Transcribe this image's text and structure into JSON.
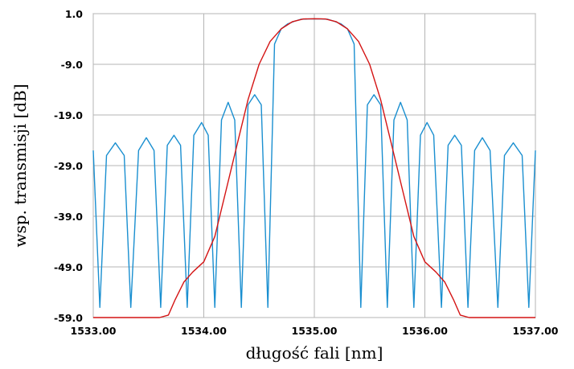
{
  "chart_data": {
    "type": "line",
    "title": "",
    "xlabel": "długość fali [nm]",
    "ylabel": "wsp. transmisji [dB]",
    "xlim": [
      1533.0,
      1537.0
    ],
    "ylim": [
      -59.0,
      1.0
    ],
    "x_ticks": [
      1533.0,
      1534.0,
      1535.0,
      1536.0,
      1537.0
    ],
    "x_tick_labels": [
      "1533.00",
      "1534.00",
      "1535.00",
      "1536.00",
      "1537.00"
    ],
    "y_ticks": [
      1.0,
      -9.0,
      -19.0,
      -29.0,
      -39.0,
      -49.0,
      -59.0
    ],
    "y_tick_labels": [
      "1.0",
      "-9.0",
      "-19.0",
      "-29.0",
      "-39.0",
      "-49.0",
      "-59.0"
    ],
    "grid": true,
    "legend": "none",
    "series": [
      {
        "color": "#1a8fd0",
        "x": [
          1533.0,
          1533.06,
          1533.12,
          1533.2,
          1533.28,
          1533.34,
          1533.41,
          1533.48,
          1533.55,
          1533.61,
          1533.67,
          1533.73,
          1533.79,
          1533.85,
          1533.91,
          1533.98,
          1534.04,
          1534.1,
          1534.16,
          1534.22,
          1534.28,
          1534.34,
          1534.4,
          1534.46,
          1534.52,
          1534.58,
          1534.64,
          1534.7,
          1534.76,
          1534.82,
          1534.88,
          1534.94,
          1535.0,
          1535.06,
          1535.12,
          1535.18,
          1535.24,
          1535.3,
          1535.36,
          1535.42,
          1535.48,
          1535.54,
          1535.6,
          1535.66,
          1535.72,
          1535.78,
          1535.84,
          1535.9,
          1535.96,
          1536.02,
          1536.08,
          1536.15,
          1536.21,
          1536.27,
          1536.33,
          1536.39,
          1536.45,
          1536.52,
          1536.59,
          1536.66,
          1536.72,
          1536.8,
          1536.88,
          1536.94,
          1537.0
        ],
        "values": [
          -26.0,
          -57.0,
          -27.0,
          -24.5,
          -27.0,
          -57.0,
          -26.0,
          -23.5,
          -26.0,
          -57.0,
          -25.0,
          -23.0,
          -25.0,
          -57.0,
          -23.0,
          -20.5,
          -23.0,
          -57.0,
          -20.0,
          -16.5,
          -20.0,
          -57.0,
          -17.0,
          -15.0,
          -17.0,
          -57.0,
          -5.0,
          -2.0,
          -1.0,
          -0.5,
          -0.1,
          -0.05,
          -0.05,
          -0.05,
          -0.1,
          -0.5,
          -1.0,
          -2.0,
          -5.0,
          -57.0,
          -17.0,
          -15.0,
          -17.0,
          -57.0,
          -20.0,
          -16.5,
          -20.0,
          -57.0,
          -23.0,
          -20.5,
          -23.0,
          -57.0,
          -25.0,
          -23.0,
          -25.0,
          -57.0,
          -26.0,
          -23.5,
          -26.0,
          -57.0,
          -27.0,
          -24.5,
          -27.0,
          -57.0,
          -26.0
        ]
      },
      {
        "color": "#d41414",
        "x": [
          1533.0,
          1533.6,
          1533.68,
          1533.74,
          1533.82,
          1533.9,
          1534.0,
          1534.1,
          1534.2,
          1534.3,
          1534.4,
          1534.5,
          1534.6,
          1534.7,
          1534.8,
          1534.9,
          1535.0,
          1535.1,
          1535.2,
          1535.3,
          1535.4,
          1535.5,
          1535.6,
          1535.7,
          1535.8,
          1535.9,
          1536.0,
          1536.1,
          1536.18,
          1536.26,
          1536.32,
          1536.4,
          1537.0
        ],
        "values": [
          -59.0,
          -59.0,
          -58.5,
          -55.5,
          -52.0,
          -50.0,
          -48.0,
          -43.0,
          -34.0,
          -25.0,
          -16.0,
          -9.0,
          -4.5,
          -2.0,
          -0.6,
          -0.05,
          0.0,
          -0.05,
          -0.6,
          -2.0,
          -4.5,
          -9.0,
          -16.0,
          -25.0,
          -34.0,
          -43.0,
          -48.0,
          -50.0,
          -52.0,
          -55.5,
          -58.5,
          -59.0,
          -59.0
        ]
      }
    ]
  }
}
